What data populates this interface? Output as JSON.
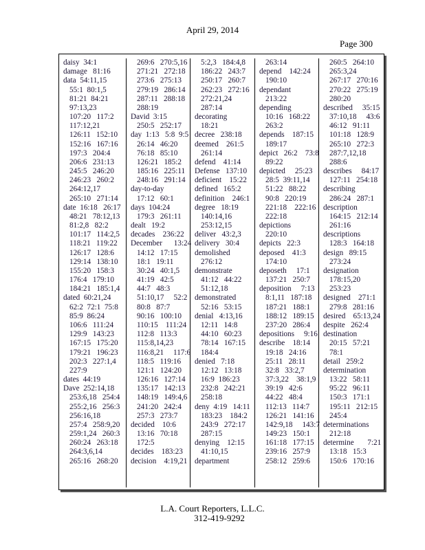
{
  "header": {
    "date": "April 29, 2014",
    "page": "Page 300"
  },
  "footer": {
    "company": "L.A. Court Reporters, L.L.C.",
    "phone": "312-419-9292"
  },
  "columns": [
    [
      {
        "t": "daisy  34:1"
      },
      {
        "t": "damage   81:16"
      },
      {
        "t": "data  54:11,15"
      },
      {
        "t": "55:1  80:1,5",
        "c": 1
      },
      {
        "t": "81:21  84:21",
        "c": 1
      },
      {
        "t": "97:13,23",
        "c": 1
      },
      {
        "t": "107:20   117:2",
        "c": 1
      },
      {
        "t": "117:12,21",
        "c": 1
      },
      {
        "t": "126:11   152:10",
        "c": 1
      },
      {
        "t": "152:16   167:16",
        "c": 1
      },
      {
        "t": "197:3   204:4",
        "c": 1
      },
      {
        "t": "206:6   231:13",
        "c": 1
      },
      {
        "t": "245:5   246:20",
        "c": 1
      },
      {
        "t": "246:23   260:2",
        "c": 1
      },
      {
        "t": "264:12,17",
        "c": 1
      },
      {
        "t": "265:10   271:14",
        "c": 1
      },
      {
        "t": "date  16:18   26:17"
      },
      {
        "t": "48:21   78:12,13",
        "c": 1
      },
      {
        "t": "81:2,8   82:2",
        "c": 1
      },
      {
        "t": "101:17   114:2,5",
        "c": 1
      },
      {
        "t": "118:21   119:22",
        "c": 1
      },
      {
        "t": "126:17   128:6",
        "c": 1
      },
      {
        "t": "129:14   138:10",
        "c": 1
      },
      {
        "t": "155:20   158:3",
        "c": 1
      },
      {
        "t": "176:4   179:10",
        "c": 1
      },
      {
        "t": "184:21   185:1,4",
        "c": 1
      },
      {
        "t": "dated  60:21,24"
      },
      {
        "t": "62:2  72:1  75:8",
        "c": 1
      },
      {
        "t": "85:9  86:24",
        "c": 1
      },
      {
        "t": "106:6   111:24",
        "c": 1
      },
      {
        "t": "129:9   143:23",
        "c": 1
      },
      {
        "t": "167:15   175:20",
        "c": 1
      },
      {
        "t": "179:21   196:23",
        "c": 1
      },
      {
        "t": "202:3   227:1,4",
        "c": 1
      },
      {
        "t": "227:9",
        "c": 1
      },
      {
        "t": "dates  44:19"
      },
      {
        "t": "Dave  252:14,18"
      },
      {
        "t": "253:6,18   254:4",
        "c": 1
      },
      {
        "t": "255:2,16   256:3",
        "c": 1
      },
      {
        "t": "256:16,18",
        "c": 1
      },
      {
        "t": "257:4   258:9,20",
        "c": 1
      },
      {
        "t": "259:1,24   260:3",
        "c": 1
      },
      {
        "t": "260:24   263:18",
        "c": 1
      },
      {
        "t": "264:3,6,14",
        "c": 1
      },
      {
        "t": "265:16   268:20",
        "c": 1
      }
    ],
    [
      {
        "t": "269:6   270:5,16",
        "c": 1
      },
      {
        "t": "271:21   272:18",
        "c": 1
      },
      {
        "t": "273:6   275:13",
        "c": 1
      },
      {
        "t": "279:19   286:14",
        "c": 1
      },
      {
        "t": "287:11   288:18",
        "c": 1
      },
      {
        "t": "288:19",
        "c": 1
      },
      {
        "t": "David  3:15"
      },
      {
        "t": "250:5   252:17",
        "c": 1
      },
      {
        "t": "day  1:13   5:8  9:5"
      },
      {
        "t": "26:14   46:20",
        "c": 1
      },
      {
        "t": "76:18   85:10",
        "c": 1
      },
      {
        "t": "126:21   185:2",
        "c": 1
      },
      {
        "t": "185:16   225:11",
        "c": 1
      },
      {
        "t": "248:16   291:14",
        "c": 1
      },
      {
        "t": "day-to-day"
      },
      {
        "t": "17:12   60:1",
        "c": 1
      },
      {
        "t": "days  104:24"
      },
      {
        "t": "179:3   261:11",
        "c": 1
      },
      {
        "t": "dealt   19:2"
      },
      {
        "t": "decades    236:22"
      },
      {
        "t": "December      13:24"
      },
      {
        "t": "14:12   17:15",
        "c": 1
      },
      {
        "t": "18:1   19:11",
        "c": 1
      },
      {
        "t": "30:24   40:1,5",
        "c": 1
      },
      {
        "t": "41:19   42:5",
        "c": 1
      },
      {
        "t": "44:7   48:3",
        "c": 1
      },
      {
        "t": "51:10,17     52:2",
        "c": 1
      },
      {
        "t": "80:8   87:7",
        "c": 1
      },
      {
        "t": "90:16   100:10",
        "c": 1
      },
      {
        "t": "110:15    111:24",
        "c": 1
      },
      {
        "t": "112:8   113:3",
        "c": 1
      },
      {
        "t": "115:8,14,23",
        "c": 1
      },
      {
        "t": "116:8,21     117:6",
        "c": 1
      },
      {
        "t": "118:5   119:16",
        "c": 1
      },
      {
        "t": "121:1   124:20",
        "c": 1
      },
      {
        "t": "126:16   127:14",
        "c": 1
      },
      {
        "t": "135:17   142:13",
        "c": 1
      },
      {
        "t": "148:19   149:4,6",
        "c": 1
      },
      {
        "t": "241:20   242:4",
        "c": 1
      },
      {
        "t": "257:3   273:7",
        "c": 1
      },
      {
        "t": "decided    10:6"
      },
      {
        "t": "13:16   70:18",
        "c": 1
      },
      {
        "t": "172:5",
        "c": 1
      },
      {
        "t": "decides    183:23"
      },
      {
        "t": "decision    4:19,21"
      }
    ],
    [
      {
        "t": "5:2,3   184:4,8",
        "c": 1
      },
      {
        "t": "186:22   243:7",
        "c": 1
      },
      {
        "t": "250:17   260:7",
        "c": 1
      },
      {
        "t": "262:23   272:16",
        "c": 1
      },
      {
        "t": "272:21,24",
        "c": 1
      },
      {
        "t": "287:14",
        "c": 1
      },
      {
        "t": "decorating"
      },
      {
        "t": "18:21",
        "c": 1
      },
      {
        "t": "decree   238:18"
      },
      {
        "t": "deemed    261:5"
      },
      {
        "t": "261:14",
        "c": 1
      },
      {
        "t": "defend    41:14"
      },
      {
        "t": "Defense   137:10"
      },
      {
        "t": "deficient    15:22"
      },
      {
        "t": "defined   165:2"
      },
      {
        "t": "definition    246:1"
      },
      {
        "t": "degree   18:19"
      },
      {
        "t": "140:14,16",
        "c": 1
      },
      {
        "t": "253:12,15",
        "c": 1
      },
      {
        "t": "deliver   43:2,3"
      },
      {
        "t": "delivery   30:4"
      },
      {
        "t": "demolished"
      },
      {
        "t": "276:12",
        "c": 1
      },
      {
        "t": "demonstrate"
      },
      {
        "t": "41:12   44:22",
        "c": 1
      },
      {
        "t": "51:12,18",
        "c": 1
      },
      {
        "t": "demonstrated"
      },
      {
        "t": "52:16   53:15",
        "c": 1
      },
      {
        "t": "denial   4:13,16"
      },
      {
        "t": "12:11   14:8",
        "c": 1
      },
      {
        "t": "44:10   60:23",
        "c": 1
      },
      {
        "t": "78:14   167:15",
        "c": 1
      },
      {
        "t": "184:4",
        "c": 1
      },
      {
        "t": "denied   7:18"
      },
      {
        "t": "12:12   13:18",
        "c": 1
      },
      {
        "t": "16:9  186:23",
        "c": 1
      },
      {
        "t": "232:8   242:21",
        "c": 1
      },
      {
        "t": "258:18",
        "c": 1
      },
      {
        "t": "deny  4:19   14:11"
      },
      {
        "t": "183:23    184:2",
        "c": 1
      },
      {
        "t": "243:9   272:17",
        "c": 1
      },
      {
        "t": "287:15",
        "c": 1
      },
      {
        "t": "denying    12:15"
      },
      {
        "t": "41:10,15",
        "c": 1
      },
      {
        "t": "department"
      }
    ],
    [
      {
        "t": "263:14",
        "c": 1
      },
      {
        "t": "depend    142:24"
      },
      {
        "t": "190:10",
        "c": 1
      },
      {
        "t": "dependant"
      },
      {
        "t": "213:22",
        "c": 1
      },
      {
        "t": "depending"
      },
      {
        "t": "10:16   168:22",
        "c": 1
      },
      {
        "t": "263:2",
        "c": 1
      },
      {
        "t": "depends    187:15"
      },
      {
        "t": "189:17",
        "c": 1
      },
      {
        "t": "depict   26:2    73:8"
      },
      {
        "t": "89:22",
        "c": 1
      },
      {
        "t": "depicted     25:23"
      },
      {
        "t": "28:5  39:11,14",
        "c": 1
      },
      {
        "t": "51:22   88:22",
        "c": 1
      },
      {
        "t": "90:8   220:19",
        "c": 1
      },
      {
        "t": "221:18    222:16",
        "c": 1
      },
      {
        "t": "222:18",
        "c": 1
      },
      {
        "t": "depictions"
      },
      {
        "t": "220:10",
        "c": 1
      },
      {
        "t": "depicts   22:3"
      },
      {
        "t": "deposed    41:3"
      },
      {
        "t": "174:10",
        "c": 1
      },
      {
        "t": "deposeth     17:1"
      },
      {
        "t": "137:21   250:7",
        "c": 1
      },
      {
        "t": "deposition     7:13"
      },
      {
        "t": "8:1,11   187:18",
        "c": 1
      },
      {
        "t": "187:21   188:1",
        "c": 1
      },
      {
        "t": "188:12   189:15",
        "c": 1
      },
      {
        "t": "237:20   286:4",
        "c": 1
      },
      {
        "t": "depositions     9:16"
      },
      {
        "t": "describe    18:14"
      },
      {
        "t": "19:18   24:16",
        "c": 1
      },
      {
        "t": "25:11   28:11",
        "c": 1
      },
      {
        "t": "32:8   33:2,7",
        "c": 1
      },
      {
        "t": "37:3,22    38:1,9",
        "c": 1
      },
      {
        "t": "39:19   42:6",
        "c": 1
      },
      {
        "t": "44:22   48:4",
        "c": 1
      },
      {
        "t": "112:13   114:7",
        "c": 1
      },
      {
        "t": "126:21   141:16",
        "c": 1
      },
      {
        "t": "142:9,18     143:7",
        "c": 1
      },
      {
        "t": "149:23   150:1",
        "c": 1
      },
      {
        "t": "161:18   177:15",
        "c": 1
      },
      {
        "t": "239:16   257:9",
        "c": 1
      },
      {
        "t": "258:12   259:6",
        "c": 1
      }
    ],
    [
      {
        "t": "260:5   264:10",
        "c": 1
      },
      {
        "t": "265:3,24",
        "c": 1
      },
      {
        "t": "267:17   270:16",
        "c": 1
      },
      {
        "t": "270:22   275:19",
        "c": 1
      },
      {
        "t": "280:20",
        "c": 1
      },
      {
        "t": "described     35:15"
      },
      {
        "t": "37:10,18     43:6",
        "c": 1
      },
      {
        "t": "46:12   91:11",
        "c": 1
      },
      {
        "t": "101:18   128:9",
        "c": 1
      },
      {
        "t": "265:10   272:3",
        "c": 1
      },
      {
        "t": "287:7,12,18",
        "c": 1
      },
      {
        "t": "288:6",
        "c": 1
      },
      {
        "t": "describes     84:17"
      },
      {
        "t": "127:11   254:18",
        "c": 1
      },
      {
        "t": "describing"
      },
      {
        "t": "286:24   287:1",
        "c": 1
      },
      {
        "t": "description"
      },
      {
        "t": "164:15   212:14",
        "c": 1
      },
      {
        "t": "261:16",
        "c": 1
      },
      {
        "t": "descriptions"
      },
      {
        "t": "128:3   164:18",
        "c": 1
      },
      {
        "t": "design   89:15"
      },
      {
        "t": "273:24",
        "c": 1
      },
      {
        "t": "designation"
      },
      {
        "t": "178:15,20",
        "c": 1
      },
      {
        "t": "253:23",
        "c": 1
      },
      {
        "t": "designed    271:1"
      },
      {
        "t": "279:8   281:16",
        "c": 1
      },
      {
        "t": "desired    65:13,24"
      },
      {
        "t": "despite   262:4"
      },
      {
        "t": "destination"
      },
      {
        "t": "20:15   57:21",
        "c": 1
      },
      {
        "t": "78:1",
        "c": 1
      },
      {
        "t": "detail   259:2"
      },
      {
        "t": "determination"
      },
      {
        "t": "13:22   58:11",
        "c": 1
      },
      {
        "t": "95:22   96:11",
        "c": 1
      },
      {
        "t": "150:3   171:1",
        "c": 1
      },
      {
        "t": "195:11   212:15",
        "c": 1
      },
      {
        "t": "245:4",
        "c": 1
      },
      {
        "t": "determinations"
      },
      {
        "t": "212:18",
        "c": 1
      },
      {
        "t": "determine       7:21"
      },
      {
        "t": "13:18   15:3",
        "c": 1
      },
      {
        "t": "150:6   170:16",
        "c": 1
      }
    ]
  ]
}
